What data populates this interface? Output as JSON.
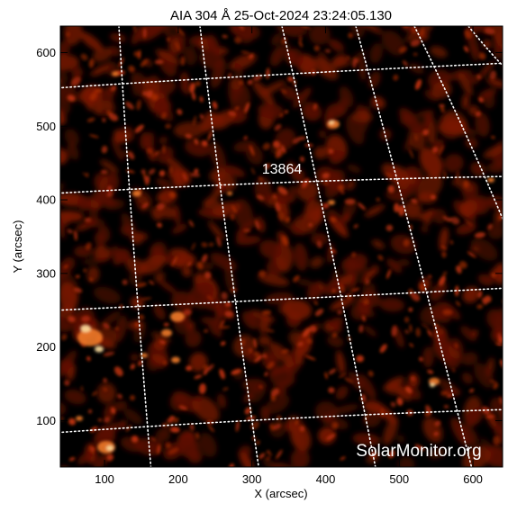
{
  "title": "AIA 304 Å 25-Oct-2024 23:24:05.130",
  "region_label": "13864",
  "watermark": "SolarMonitor.org",
  "xlabel": "X (arcsec)",
  "ylabel": "Y (arcsec)",
  "x_ticks": [
    "100",
    "200",
    "300",
    "400",
    "500",
    "600"
  ],
  "y_ticks": [
    "100",
    "200",
    "300",
    "400",
    "500",
    "600"
  ],
  "colors": {
    "background": "#ffffff",
    "plot_base": "#000000",
    "emission_dim": "#5a0e02",
    "emission_mid": "#b8300a",
    "emission_bright": "#f07a2a",
    "emission_peak": "#ffe0a0",
    "grid": "#ffffff",
    "axis_text": "#000000"
  }
}
